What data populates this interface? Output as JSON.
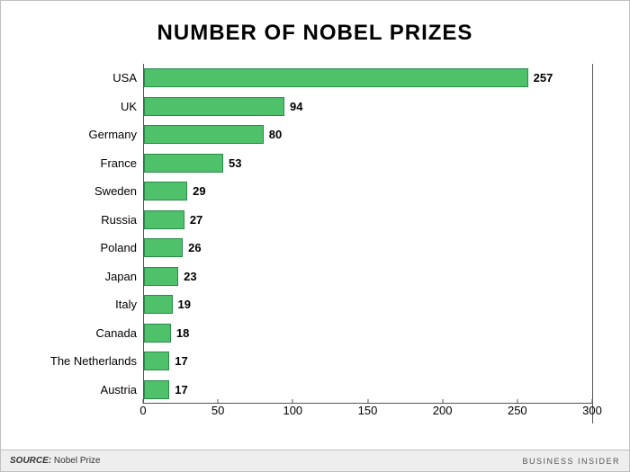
{
  "chart": {
    "type": "bar-horizontal",
    "title": "NUMBER OF NOBEL PRIZES",
    "title_fontsize": 24,
    "categories": [
      "USA",
      "UK",
      "Germany",
      "France",
      "Sweden",
      "Russia",
      "Poland",
      "Japan",
      "Italy",
      "Canada",
      "The Netherlands",
      "Austria"
    ],
    "values": [
      257,
      94,
      80,
      53,
      29,
      27,
      26,
      23,
      19,
      18,
      17,
      17
    ],
    "bar_color": "#4fc16a",
    "bar_border_color": "#2a8a4a",
    "label_fontsize": 13,
    "value_fontsize": 13,
    "x_axis": {
      "min": 0,
      "max": 300,
      "tick_step": 50,
      "tick_fontsize": 13
    },
    "background_color": "#ffffff",
    "axis_color": "#555555",
    "bar_height_ratio": 0.68
  },
  "footer": {
    "source_label": "SOURCE:",
    "source_value": "Nobel Prize",
    "attribution": "BUSINESS INSIDER",
    "background_color": "#eeeeee"
  }
}
